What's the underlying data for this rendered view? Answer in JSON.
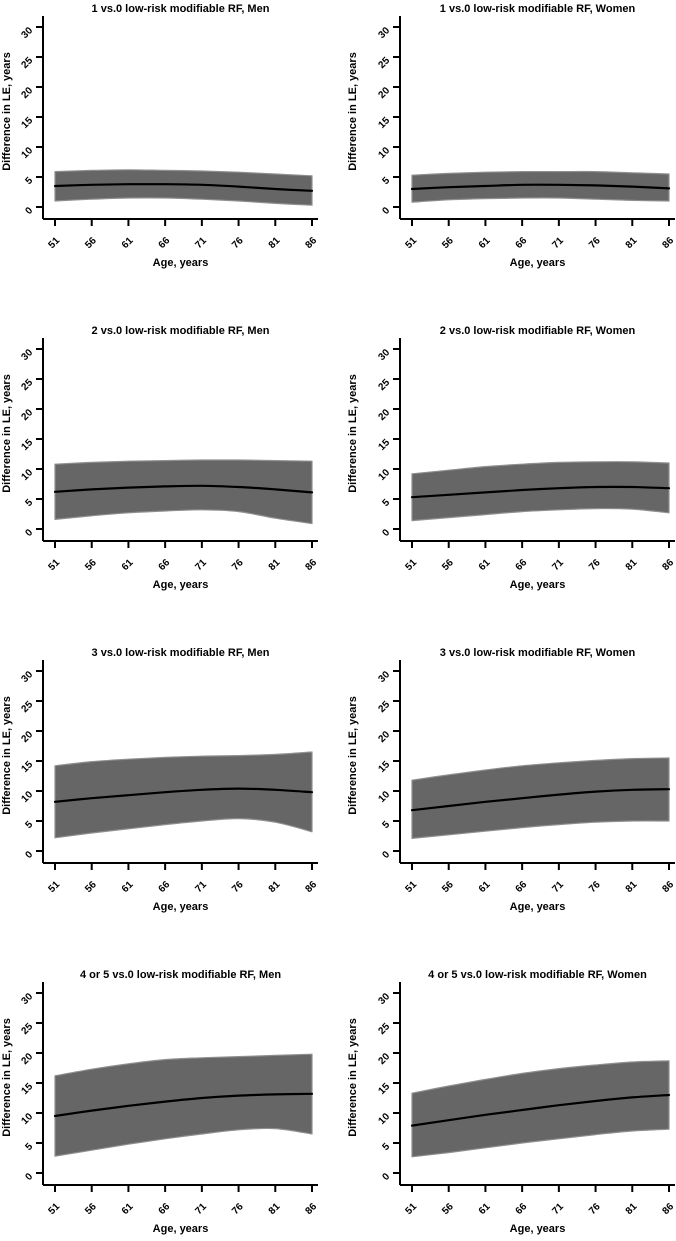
{
  "figure": {
    "background": "#ffffff",
    "grid": "off",
    "legend": "none",
    "colors": {
      "band_fill": "#666666",
      "band_edge": "#8f8f8f",
      "mean_line": "#000000",
      "axis": "#000000",
      "text": "#000000"
    }
  },
  "chart_data": [
    {
      "type": "area",
      "title": "1 vs.0 low-risk modifiable RF, Men",
      "xlabel": "Age, years",
      "ylabel": "Difference in LE, years",
      "x": [
        51,
        56,
        61,
        66,
        71,
        76,
        81,
        86
      ],
      "xticks": [
        51,
        56,
        61,
        66,
        71,
        76,
        81,
        86
      ],
      "yticks": [
        0,
        5,
        10,
        15,
        20,
        25,
        30
      ],
      "ylim": [
        0,
        30
      ],
      "series": [
        {
          "name": "mean",
          "values": [
            3.5,
            3.7,
            3.8,
            3.8,
            3.7,
            3.4,
            3.0,
            2.7
          ]
        },
        {
          "name": "lower_ci",
          "values": [
            1.0,
            1.3,
            1.5,
            1.5,
            1.3,
            1.0,
            0.6,
            0.3
          ]
        },
        {
          "name": "upper_ci",
          "values": [
            5.9,
            6.1,
            6.2,
            6.1,
            6.0,
            5.8,
            5.5,
            5.2
          ]
        }
      ]
    },
    {
      "type": "area",
      "title": "1 vs.0 low-risk modifiable RF, Women",
      "xlabel": "Age, years",
      "ylabel": "Difference in LE, years",
      "x": [
        51,
        56,
        61,
        66,
        71,
        76,
        81,
        86
      ],
      "xticks": [
        51,
        56,
        61,
        66,
        71,
        76,
        81,
        86
      ],
      "yticks": [
        0,
        5,
        10,
        15,
        20,
        25,
        30
      ],
      "ylim": [
        0,
        30
      ],
      "series": [
        {
          "name": "mean",
          "values": [
            3.0,
            3.3,
            3.5,
            3.7,
            3.7,
            3.6,
            3.4,
            3.1
          ]
        },
        {
          "name": "lower_ci",
          "values": [
            0.8,
            1.2,
            1.4,
            1.5,
            1.5,
            1.3,
            1.1,
            1.0
          ]
        },
        {
          "name": "upper_ci",
          "values": [
            5.3,
            5.6,
            5.8,
            5.9,
            5.9,
            5.9,
            5.7,
            5.5
          ]
        }
      ]
    },
    {
      "type": "area",
      "title": "2 vs.0 low-risk modifiable RF, Men",
      "xlabel": "Age, years",
      "ylabel": "Difference in LE, years",
      "x": [
        51,
        56,
        61,
        66,
        71,
        76,
        81,
        86
      ],
      "xticks": [
        51,
        56,
        61,
        66,
        71,
        76,
        81,
        86
      ],
      "yticks": [
        0,
        5,
        10,
        15,
        20,
        25,
        30
      ],
      "ylim": [
        0,
        30
      ],
      "series": [
        {
          "name": "mean",
          "values": [
            6.2,
            6.6,
            6.9,
            7.1,
            7.2,
            7.0,
            6.6,
            6.1
          ]
        },
        {
          "name": "lower_ci",
          "values": [
            1.6,
            2.2,
            2.7,
            3.0,
            3.2,
            2.9,
            1.8,
            0.9
          ]
        },
        {
          "name": "upper_ci",
          "values": [
            10.8,
            11.1,
            11.3,
            11.4,
            11.5,
            11.5,
            11.4,
            11.3
          ]
        }
      ]
    },
    {
      "type": "area",
      "title": "2 vs.0 low-risk modifiable RF, Women",
      "xlabel": "Age, years",
      "ylabel": "Difference in LE, years",
      "x": [
        51,
        56,
        61,
        66,
        71,
        76,
        81,
        86
      ],
      "xticks": [
        51,
        56,
        61,
        66,
        71,
        76,
        81,
        86
      ],
      "yticks": [
        0,
        5,
        10,
        15,
        20,
        25,
        30
      ],
      "ylim": [
        0,
        30
      ],
      "series": [
        {
          "name": "mean",
          "values": [
            5.3,
            5.7,
            6.1,
            6.5,
            6.8,
            7.0,
            7.0,
            6.8
          ]
        },
        {
          "name": "lower_ci",
          "values": [
            1.4,
            1.9,
            2.4,
            2.9,
            3.2,
            3.4,
            3.3,
            2.7
          ]
        },
        {
          "name": "upper_ci",
          "values": [
            9.2,
            9.8,
            10.4,
            10.8,
            11.1,
            11.2,
            11.2,
            11.0
          ]
        }
      ]
    },
    {
      "type": "area",
      "title": "3 vs.0 low-risk modifiable RF, Men",
      "xlabel": "Age, years",
      "ylabel": "Difference in LE, years",
      "x": [
        51,
        56,
        61,
        66,
        71,
        76,
        81,
        86
      ],
      "xticks": [
        51,
        56,
        61,
        66,
        71,
        76,
        81,
        86
      ],
      "yticks": [
        0,
        5,
        10,
        15,
        20,
        25,
        30
      ],
      "ylim": [
        0,
        30
      ],
      "series": [
        {
          "name": "mean",
          "values": [
            8.2,
            8.8,
            9.3,
            9.8,
            10.2,
            10.4,
            10.2,
            9.8
          ]
        },
        {
          "name": "lower_ci",
          "values": [
            2.2,
            3.0,
            3.7,
            4.4,
            5.0,
            5.4,
            4.8,
            3.2
          ]
        },
        {
          "name": "upper_ci",
          "values": [
            14.2,
            14.9,
            15.3,
            15.6,
            15.8,
            15.9,
            16.1,
            16.5
          ]
        }
      ]
    },
    {
      "type": "area",
      "title": "3 vs.0 low-risk modifiable RF, Women",
      "xlabel": "Age, years",
      "ylabel": "Difference in LE, years",
      "x": [
        51,
        56,
        61,
        66,
        71,
        76,
        81,
        86
      ],
      "xticks": [
        51,
        56,
        61,
        66,
        71,
        76,
        81,
        86
      ],
      "yticks": [
        0,
        5,
        10,
        15,
        20,
        25,
        30
      ],
      "ylim": [
        0,
        30
      ],
      "series": [
        {
          "name": "mean",
          "values": [
            6.8,
            7.5,
            8.2,
            8.8,
            9.4,
            9.9,
            10.2,
            10.3
          ]
        },
        {
          "name": "lower_ci",
          "values": [
            2.1,
            2.7,
            3.3,
            3.9,
            4.4,
            4.8,
            5.0,
            5.0
          ]
        },
        {
          "name": "upper_ci",
          "values": [
            11.8,
            12.7,
            13.5,
            14.2,
            14.7,
            15.1,
            15.4,
            15.5
          ]
        }
      ]
    },
    {
      "type": "area",
      "title": "4 or 5 vs.0 low-risk modifiable RF, Men",
      "xlabel": "Age, years",
      "ylabel": "Difference in LE, years",
      "x": [
        51,
        56,
        61,
        66,
        71,
        76,
        81,
        86
      ],
      "xticks": [
        51,
        56,
        61,
        66,
        71,
        76,
        81,
        86
      ],
      "yticks": [
        0,
        5,
        10,
        15,
        20,
        25,
        30
      ],
      "ylim": [
        0,
        30
      ],
      "series": [
        {
          "name": "mean",
          "values": [
            9.5,
            10.4,
            11.2,
            11.9,
            12.5,
            12.9,
            13.1,
            13.2
          ]
        },
        {
          "name": "lower_ci",
          "values": [
            2.8,
            3.8,
            4.8,
            5.7,
            6.5,
            7.2,
            7.4,
            6.5
          ]
        },
        {
          "name": "upper_ci",
          "values": [
            16.2,
            17.3,
            18.2,
            18.9,
            19.2,
            19.4,
            19.6,
            19.8
          ]
        }
      ]
    },
    {
      "type": "area",
      "title": "4 or 5 vs.0 low-risk modifiable RF, Women",
      "xlabel": "Age, years",
      "ylabel": "Difference in LE, years",
      "x": [
        51,
        56,
        61,
        66,
        71,
        76,
        81,
        86
      ],
      "xticks": [
        51,
        56,
        61,
        66,
        71,
        76,
        81,
        86
      ],
      "yticks": [
        0,
        5,
        10,
        15,
        20,
        25,
        30
      ],
      "ylim": [
        0,
        30
      ],
      "series": [
        {
          "name": "mean",
          "values": [
            7.9,
            8.8,
            9.7,
            10.5,
            11.3,
            12.0,
            12.6,
            13.0
          ]
        },
        {
          "name": "lower_ci",
          "values": [
            2.7,
            3.4,
            4.2,
            5.0,
            5.7,
            6.4,
            7.0,
            7.3
          ]
        },
        {
          "name": "upper_ci",
          "values": [
            13.3,
            14.5,
            15.6,
            16.6,
            17.4,
            18.0,
            18.5,
            18.7
          ]
        }
      ]
    }
  ]
}
